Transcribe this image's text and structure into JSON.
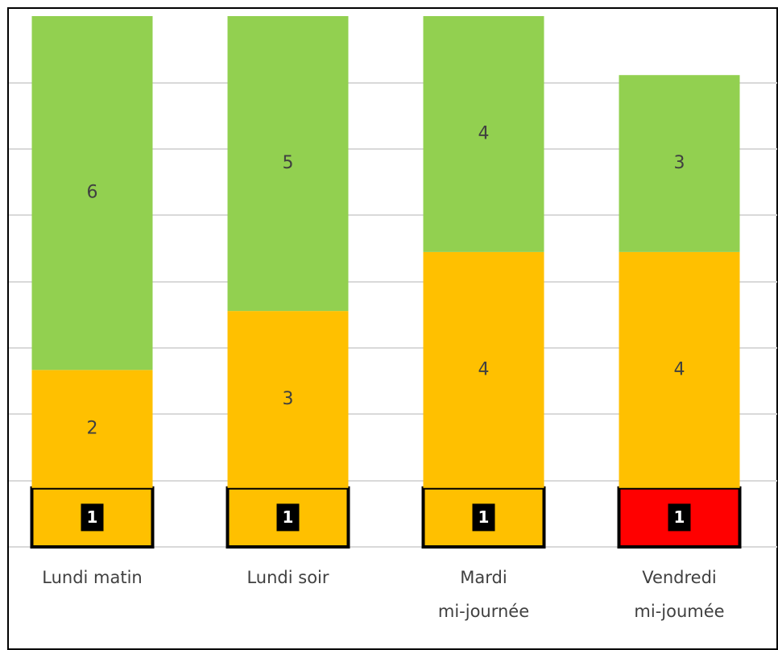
{
  "chart_data": {
    "type": "stacked_bar",
    "categories": [
      [
        "Lundi matin"
      ],
      [
        "Lundi soir"
      ],
      [
        "Mardi",
        "mi-journée"
      ],
      [
        "Vendredi",
        "mi-joumée"
      ]
    ],
    "series": [
      {
        "color": [
          "#ffc000",
          "#ffc000",
          "#ffc000",
          "#ff0000"
        ],
        "values": [
          1,
          1,
          1,
          1
        ]
      },
      {
        "color": "#ffc000",
        "values": [
          2,
          3,
          4,
          4
        ]
      },
      {
        "color": "#92d050",
        "values": [
          6,
          5,
          4,
          3
        ]
      }
    ],
    "ylim": [
      0,
      9
    ]
  }
}
